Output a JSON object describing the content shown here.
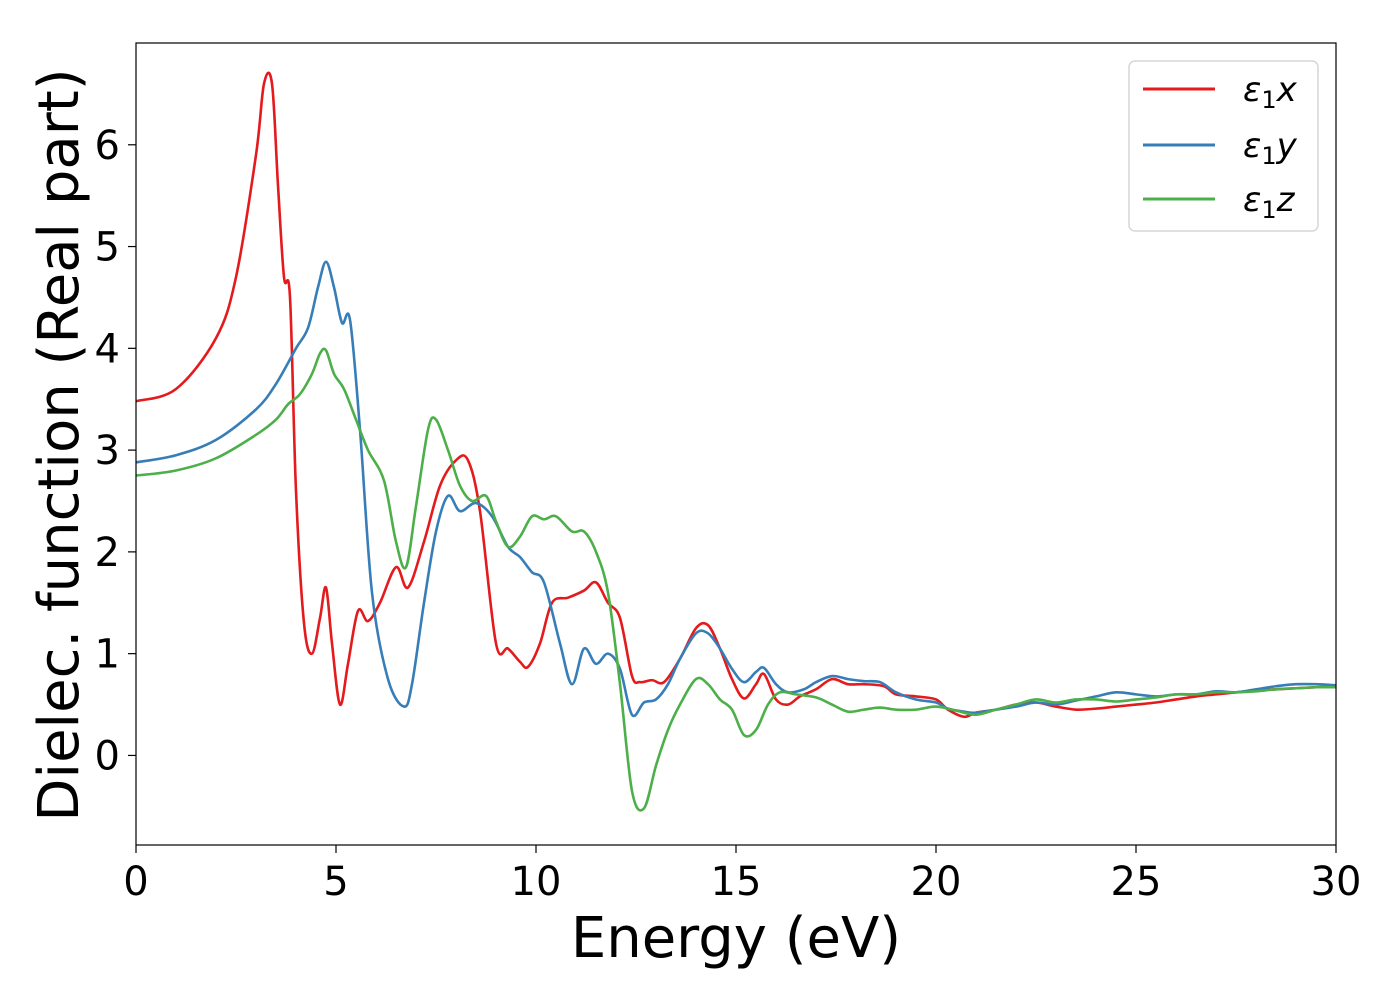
{
  "chart_data": {
    "type": "line",
    "xlabel": "Energy (eV)",
    "ylabel": "Dielec. function (Real part)",
    "xlim": [
      0,
      30
    ],
    "ylim": [
      -0.88,
      7.0
    ],
    "xticks": [
      0,
      5,
      10,
      15,
      20,
      25,
      30
    ],
    "yticks": [
      0,
      1,
      2,
      3,
      4,
      5,
      6
    ],
    "grid": false,
    "legend_position": "top-right",
    "series": [
      {
        "name": "ε1x",
        "legend_main": "ε",
        "legend_sub": "1",
        "legend_suffix": "x",
        "color": "#e41a1c",
        "x": [
          0,
          1,
          2,
          2.5,
          3,
          3.2,
          3.4,
          3.55,
          3.7,
          3.85,
          4.0,
          4.2,
          4.4,
          4.6,
          4.75,
          4.9,
          5.1,
          5.3,
          5.55,
          5.8,
          6.1,
          6.5,
          6.8,
          7.2,
          7.6,
          8.0,
          8.3,
          8.6,
          9.0,
          9.3,
          9.6,
          9.8,
          10.1,
          10.4,
          10.8,
          11.2,
          11.5,
          11.8,
          12.1,
          12.4,
          12.6,
          12.9,
          13.2,
          13.6,
          14.0,
          14.3,
          14.6,
          14.9,
          15.2,
          15.5,
          15.7,
          16.0,
          16.3,
          16.6,
          17.0,
          17.4,
          17.8,
          18.2,
          18.7,
          19.0,
          19.5,
          20.0,
          20.3,
          20.7,
          21.0,
          21.5,
          22.0,
          22.5,
          23.0,
          23.5,
          24.0,
          24.5,
          25.0,
          25.5,
          26.0,
          26.5,
          27.0,
          27.5,
          28.0,
          28.5,
          29.0,
          29.5,
          30.0
        ],
        "y": [
          3.48,
          3.6,
          4.1,
          4.7,
          5.9,
          6.6,
          6.6,
          5.6,
          4.7,
          4.5,
          2.6,
          1.3,
          1.0,
          1.35,
          1.65,
          1.1,
          0.5,
          0.9,
          1.42,
          1.32,
          1.5,
          1.85,
          1.65,
          2.1,
          2.65,
          2.9,
          2.9,
          2.4,
          1.1,
          1.05,
          0.92,
          0.87,
          1.1,
          1.5,
          1.55,
          1.62,
          1.7,
          1.5,
          1.35,
          0.78,
          0.72,
          0.74,
          0.72,
          0.95,
          1.25,
          1.28,
          1.05,
          0.75,
          0.56,
          0.7,
          0.8,
          0.55,
          0.5,
          0.58,
          0.65,
          0.75,
          0.7,
          0.7,
          0.68,
          0.6,
          0.58,
          0.55,
          0.45,
          0.38,
          0.42,
          0.45,
          0.5,
          0.52,
          0.48,
          0.45,
          0.46,
          0.48,
          0.5,
          0.52,
          0.55,
          0.58,
          0.6,
          0.62,
          0.64,
          0.65,
          0.66,
          0.67,
          0.68
        ]
      },
      {
        "name": "ε1y",
        "legend_main": "ε",
        "legend_sub": "1",
        "legend_suffix": "y",
        "color": "#377eb8",
        "x": [
          0,
          1,
          2,
          3,
          3.5,
          4.0,
          4.3,
          4.55,
          4.75,
          4.95,
          5.15,
          5.35,
          5.6,
          5.9,
          6.3,
          6.7,
          6.9,
          7.2,
          7.5,
          7.8,
          8.1,
          8.5,
          8.9,
          9.3,
          9.6,
          9.9,
          10.2,
          10.6,
          10.9,
          11.2,
          11.5,
          11.8,
          12.1,
          12.4,
          12.7,
          13.0,
          13.3,
          13.6,
          14.0,
          14.3,
          14.6,
          14.9,
          15.2,
          15.5,
          15.7,
          16.0,
          16.3,
          16.7,
          17.0,
          17.4,
          17.8,
          18.2,
          18.6,
          19.0,
          19.5,
          20.0,
          20.3,
          20.7,
          21.0,
          21.5,
          22.0,
          22.5,
          23.0,
          23.5,
          24.0,
          24.5,
          25.0,
          25.5,
          26.0,
          26.5,
          27.0,
          27.5,
          28.0,
          28.5,
          29.0,
          29.5,
          30.0
        ],
        "y": [
          2.88,
          2.95,
          3.1,
          3.4,
          3.65,
          4.0,
          4.2,
          4.6,
          4.85,
          4.6,
          4.25,
          4.28,
          3.2,
          1.6,
          0.75,
          0.48,
          0.7,
          1.5,
          2.2,
          2.55,
          2.4,
          2.48,
          2.35,
          2.05,
          1.95,
          1.8,
          1.7,
          1.1,
          0.7,
          1.05,
          0.9,
          1.0,
          0.85,
          0.4,
          0.52,
          0.55,
          0.7,
          0.95,
          1.2,
          1.2,
          1.05,
          0.85,
          0.72,
          0.82,
          0.86,
          0.7,
          0.62,
          0.65,
          0.72,
          0.78,
          0.75,
          0.73,
          0.72,
          0.62,
          0.55,
          0.52,
          0.46,
          0.43,
          0.42,
          0.45,
          0.48,
          0.52,
          0.5,
          0.54,
          0.58,
          0.62,
          0.6,
          0.58,
          0.6,
          0.6,
          0.63,
          0.62,
          0.65,
          0.68,
          0.7,
          0.7,
          0.69
        ]
      },
      {
        "name": "ε1z",
        "legend_main": "ε",
        "legend_sub": "1",
        "legend_suffix": "z",
        "color": "#4daf4a",
        "x": [
          0,
          1,
          2,
          3,
          3.5,
          3.8,
          4.1,
          4.4,
          4.6,
          4.75,
          4.95,
          5.2,
          5.5,
          5.8,
          6.2,
          6.5,
          6.75,
          7.0,
          7.3,
          7.5,
          7.8,
          8.1,
          8.4,
          8.75,
          9.0,
          9.3,
          9.6,
          9.9,
          10.2,
          10.5,
          10.9,
          11.2,
          11.5,
          11.8,
          12.1,
          12.4,
          12.7,
          13.0,
          13.3,
          13.6,
          14.0,
          14.3,
          14.6,
          14.9,
          15.2,
          15.5,
          15.8,
          16.1,
          16.5,
          17.0,
          17.4,
          17.8,
          18.2,
          18.6,
          19.0,
          19.5,
          20.0,
          20.5,
          21.0,
          21.5,
          22.0,
          22.5,
          23.0,
          23.5,
          24.0,
          24.5,
          25.0,
          25.5,
          26.0,
          26.5,
          27.0,
          27.5,
          28.0,
          28.5,
          29.0,
          29.5,
          30.0
        ],
        "y": [
          2.75,
          2.8,
          2.92,
          3.15,
          3.3,
          3.45,
          3.55,
          3.75,
          3.95,
          3.98,
          3.75,
          3.6,
          3.3,
          3.0,
          2.7,
          2.1,
          1.85,
          2.45,
          3.2,
          3.3,
          3.0,
          2.65,
          2.5,
          2.55,
          2.3,
          2.05,
          2.15,
          2.35,
          2.32,
          2.35,
          2.2,
          2.2,
          2.0,
          1.6,
          0.7,
          -0.35,
          -0.52,
          -0.1,
          0.25,
          0.5,
          0.75,
          0.7,
          0.55,
          0.45,
          0.2,
          0.25,
          0.5,
          0.62,
          0.6,
          0.57,
          0.5,
          0.43,
          0.45,
          0.47,
          0.45,
          0.45,
          0.48,
          0.44,
          0.4,
          0.45,
          0.5,
          0.55,
          0.52,
          0.55,
          0.55,
          0.53,
          0.55,
          0.57,
          0.6,
          0.6,
          0.62,
          0.62,
          0.63,
          0.65,
          0.66,
          0.67,
          0.67
        ]
      }
    ]
  }
}
